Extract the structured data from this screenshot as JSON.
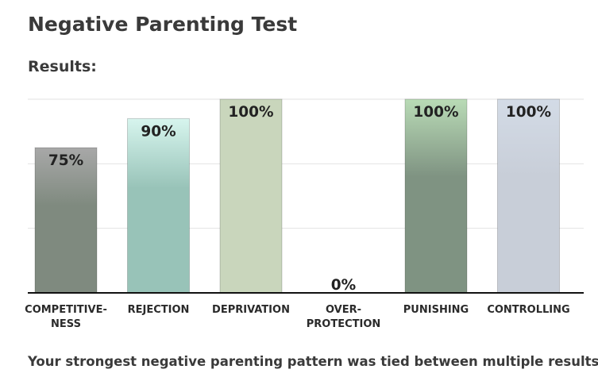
{
  "page": {
    "title": "Negative Parenting Test",
    "subtitle": "Results:",
    "footer": "Your strongest negative parenting pattern was tied between multiple results."
  },
  "chart_data": {
    "type": "bar",
    "categories": [
      "COMPETITIVE-\nNESS",
      "REJECTION",
      "DEPRIVATION",
      "OVER-\nPROTECTION",
      "PUNISHING",
      "CONTROLLING"
    ],
    "values": [
      75,
      90,
      100,
      0,
      100,
      100
    ],
    "value_labels": [
      "75%",
      "90%",
      "100%",
      "0%",
      "100%",
      "100%"
    ],
    "ylim": [
      0,
      100
    ],
    "grid": true,
    "colors": [
      [
        "#a8a8a8",
        "#7f8a7f"
      ],
      [
        "#d7f5ee",
        "#98c3b8"
      ],
      [
        "#c9d6bc",
        "#c9d6bc"
      ],
      [
        "#c9d6bc",
        "#c9d6bc"
      ],
      [
        "#b9dbb6",
        "#7f9382"
      ],
      [
        "#d3dbe6",
        "#c8ced8"
      ]
    ]
  }
}
